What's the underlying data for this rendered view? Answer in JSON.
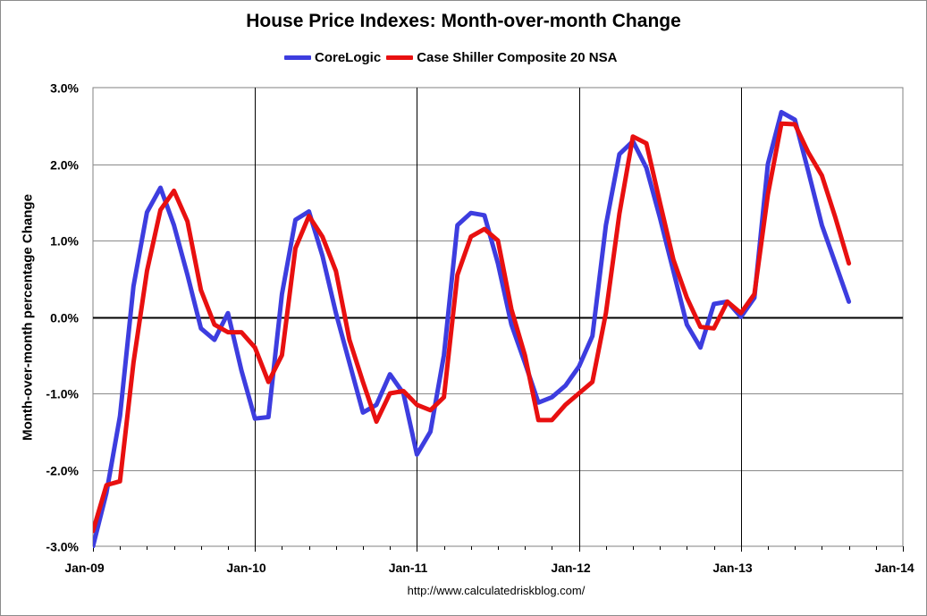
{
  "chart_data": {
    "type": "line",
    "title": "House Price Indexes: Month-over-month Change",
    "xlabel": "",
    "ylabel": "Month-over-month percentage Change",
    "ylim": [
      -3.0,
      3.0
    ],
    "y_ticks": [
      -3.0,
      -2.0,
      -1.0,
      0.0,
      1.0,
      2.0,
      3.0
    ],
    "y_tick_labels": [
      "-3.0%",
      "-2.0%",
      "-1.0%",
      "0.0%",
      "1.0%",
      "2.0%",
      "3.0%"
    ],
    "x_tick_labels": [
      "Jan-09",
      "Jan-10",
      "Jan-11",
      "Jan-12",
      "Jan-13",
      "Jan-14"
    ],
    "x_unit": "months since Jan-09",
    "xlim": [
      0,
      60
    ],
    "grid": true,
    "legend_position": "top-center",
    "series": [
      {
        "name": "CoreLogic",
        "color": "#3d3ddf",
        "x": [
          0,
          1,
          2,
          3,
          4,
          5,
          6,
          7,
          8,
          9,
          10,
          11,
          12,
          13,
          14,
          15,
          16,
          17,
          18,
          19,
          20,
          21,
          22,
          23,
          24,
          25,
          26,
          27,
          28,
          29,
          30,
          31,
          32,
          33,
          34,
          35,
          36,
          37,
          38,
          39,
          40,
          41,
          42,
          43,
          44,
          45,
          46,
          47,
          48,
          49,
          50,
          51,
          52,
          53,
          54,
          55,
          56
        ],
        "values": [
          -3.0,
          -2.3,
          -1.3,
          0.4,
          1.37,
          1.69,
          1.2,
          0.55,
          -0.15,
          -0.3,
          0.05,
          -0.7,
          -1.33,
          -1.31,
          0.3,
          1.27,
          1.38,
          0.8,
          0.05,
          -0.6,
          -1.25,
          -1.15,
          -0.75,
          -1.0,
          -1.8,
          -1.5,
          -0.5,
          1.2,
          1.36,
          1.33,
          0.7,
          -0.1,
          -0.6,
          -1.12,
          -1.05,
          -0.9,
          -0.65,
          -0.25,
          1.2,
          2.13,
          2.3,
          1.95,
          1.3,
          0.6,
          -0.1,
          -0.4,
          0.17,
          0.2,
          0.0,
          0.25,
          2.0,
          2.68,
          2.58,
          1.9,
          1.2,
          0.7,
          0.2
        ]
      },
      {
        "name": "Case Shiller Composite 20 NSA",
        "color": "#e81010",
        "x": [
          0,
          1,
          2,
          3,
          4,
          5,
          6,
          7,
          8,
          9,
          10,
          11,
          12,
          13,
          14,
          15,
          16,
          17,
          18,
          19,
          20,
          21,
          22,
          23,
          24,
          25,
          26,
          27,
          28,
          29,
          30,
          31,
          32,
          33,
          34,
          35,
          36,
          37,
          38,
          39,
          40,
          41,
          42,
          43,
          44,
          45,
          46,
          47,
          48,
          49,
          50,
          51,
          52,
          53,
          54,
          55,
          56
        ],
        "values": [
          -2.8,
          -2.2,
          -2.15,
          -0.6,
          0.6,
          1.4,
          1.65,
          1.25,
          0.35,
          -0.1,
          -0.2,
          -0.2,
          -0.4,
          -0.85,
          -0.5,
          0.9,
          1.32,
          1.05,
          0.6,
          -0.3,
          -0.85,
          -1.37,
          -1.0,
          -0.97,
          -1.15,
          -1.22,
          -1.05,
          0.55,
          1.05,
          1.15,
          1.0,
          0.1,
          -0.5,
          -1.35,
          -1.35,
          -1.15,
          -1.0,
          -0.85,
          0.05,
          1.35,
          2.36,
          2.27,
          1.5,
          0.75,
          0.25,
          -0.13,
          -0.15,
          0.2,
          0.05,
          0.3,
          1.6,
          2.53,
          2.52,
          2.15,
          1.85,
          1.3,
          0.7
        ]
      }
    ]
  },
  "source_text": "http://www.calculatedriskblog.com/"
}
